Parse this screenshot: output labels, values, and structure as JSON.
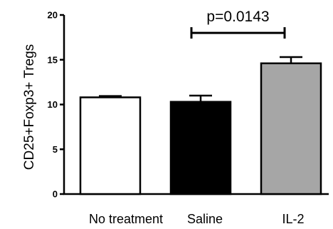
{
  "chart_data": {
    "type": "bar",
    "ylabel": "CD25+Foxp3+ Tregs",
    "xlabel": "",
    "ylim": [
      0,
      20
    ],
    "yticks": [
      0,
      5,
      10,
      15,
      20
    ],
    "grid": false,
    "legend": "none",
    "categories": [
      "No treatment",
      "Saline",
      "IL-2"
    ],
    "values": [
      10.8,
      10.3,
      14.6
    ],
    "errors": [
      0.15,
      0.7,
      0.7
    ],
    "colors": [
      "#ffffff",
      "#000000",
      "#a6a6a6"
    ],
    "annotations": [
      {
        "text": "p=0.0143",
        "from": "Saline",
        "to": "IL-2",
        "y": 18
      }
    ]
  }
}
